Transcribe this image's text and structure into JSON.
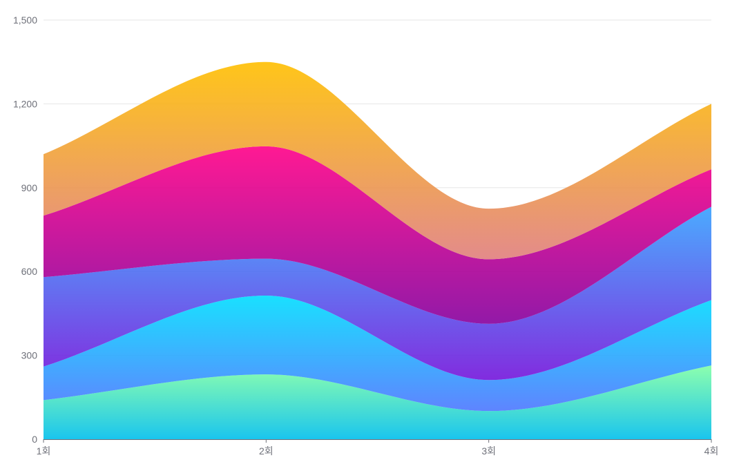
{
  "chart_data": {
    "type": "area",
    "stacked": true,
    "smooth": true,
    "categories": [
      "1회",
      "2회",
      "3회",
      "4회"
    ],
    "ylim": [
      0,
      1500
    ],
    "yticks": [
      0,
      300,
      600,
      900,
      1200,
      1500
    ],
    "ytick_labels": [
      "0",
      "300",
      "600",
      "900",
      "1,200",
      "1,500"
    ],
    "grid": true,
    "legend": "none",
    "series": [
      {
        "values": [
          140,
          232,
          101,
          264
        ],
        "colors": [
          "#80FFA5",
          "#01BFEC"
        ]
      },
      {
        "values": [
          120,
          282,
          111,
          234
        ],
        "colors": [
          "#00DDFF",
          "#4D77FF"
        ]
      },
      {
        "values": [
          320,
          132,
          201,
          334
        ],
        "colors": [
          "#37A2FF",
          "#7415DB"
        ]
      },
      {
        "values": [
          220,
          402,
          231,
          134
        ],
        "colors": [
          "#FF0087",
          "#87009E"
        ]
      },
      {
        "values": [
          220,
          302,
          181,
          234
        ],
        "colors": [
          "#FFBF00",
          "#E07E7E"
        ]
      }
    ]
  }
}
